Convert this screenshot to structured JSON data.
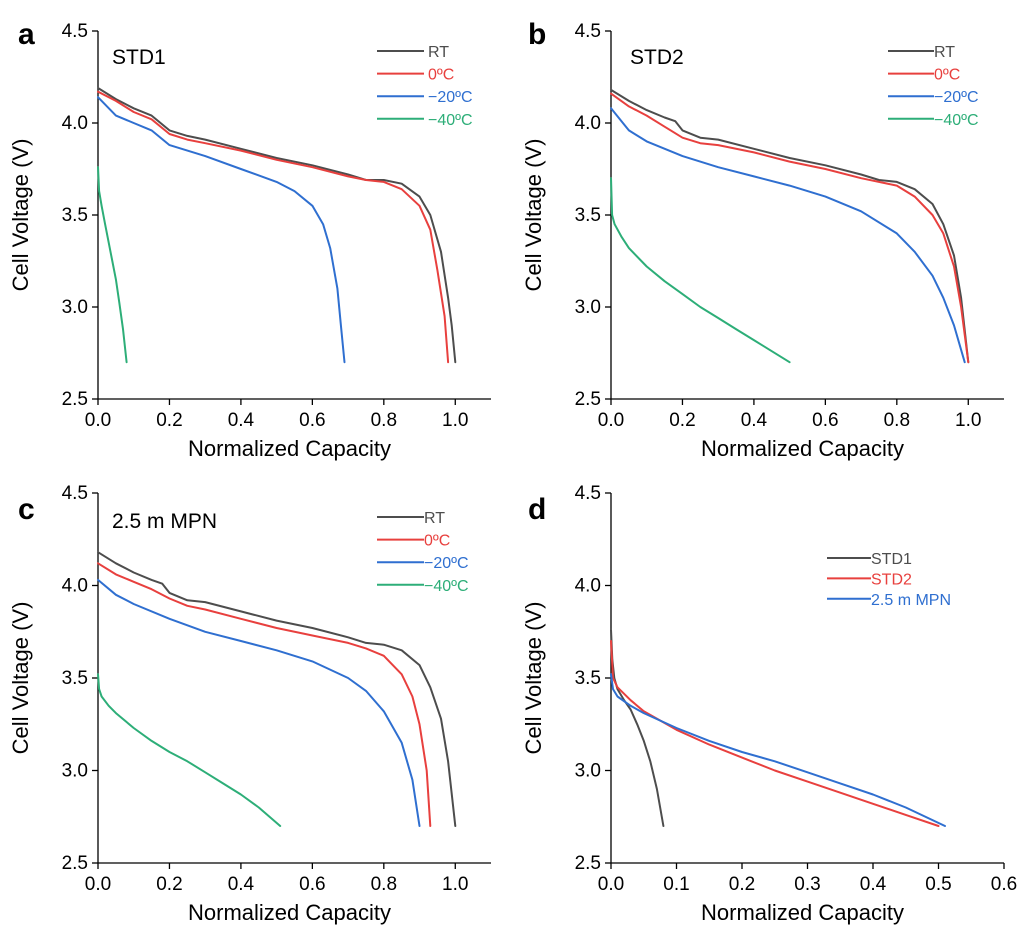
{
  "chart_data": [
    {
      "type": "line",
      "panel_letter": "a",
      "title": "STD1",
      "xlabel": "Normalized Capacity",
      "ylabel": "Cell Voltage (V)",
      "xlim": [
        0,
        1.1
      ],
      "ylim": [
        2.5,
        4.5
      ],
      "xticks": [
        "0.0",
        "0.2",
        "0.4",
        "0.6",
        "0.8",
        "1.0"
      ],
      "yticks": [
        "2.5",
        "3.0",
        "3.5",
        "4.0",
        "4.5"
      ],
      "legend_position": "top-right",
      "series": [
        {
          "name": "RT",
          "color": "#4d4d4d",
          "points": [
            [
              0,
              4.19
            ],
            [
              0.05,
              4.13
            ],
            [
              0.1,
              4.08
            ],
            [
              0.15,
              4.04
            ],
            [
              0.2,
              3.96
            ],
            [
              0.25,
              3.93
            ],
            [
              0.3,
              3.91
            ],
            [
              0.4,
              3.86
            ],
            [
              0.5,
              3.81
            ],
            [
              0.6,
              3.77
            ],
            [
              0.7,
              3.72
            ],
            [
              0.75,
              3.69
            ],
            [
              0.8,
              3.69
            ],
            [
              0.85,
              3.67
            ],
            [
              0.9,
              3.6
            ],
            [
              0.93,
              3.5
            ],
            [
              0.96,
              3.3
            ],
            [
              0.98,
              3.05
            ],
            [
              0.99,
              2.9
            ],
            [
              1.0,
              2.7
            ]
          ]
        },
        {
          "name": "0ºC",
          "color": "#e8403e",
          "points": [
            [
              0,
              4.17
            ],
            [
              0.05,
              4.12
            ],
            [
              0.1,
              4.06
            ],
            [
              0.15,
              4.02
            ],
            [
              0.2,
              3.94
            ],
            [
              0.25,
              3.91
            ],
            [
              0.3,
              3.89
            ],
            [
              0.4,
              3.85
            ],
            [
              0.5,
              3.8
            ],
            [
              0.6,
              3.76
            ],
            [
              0.7,
              3.71
            ],
            [
              0.75,
              3.69
            ],
            [
              0.8,
              3.68
            ],
            [
              0.85,
              3.64
            ],
            [
              0.9,
              3.55
            ],
            [
              0.93,
              3.42
            ],
            [
              0.95,
              3.2
            ],
            [
              0.97,
              2.95
            ],
            [
              0.98,
              2.7
            ]
          ]
        },
        {
          "name": "−20ºC",
          "color": "#2f6fd0",
          "points": [
            [
              0,
              4.14
            ],
            [
              0.05,
              4.04
            ],
            [
              0.1,
              4.0
            ],
            [
              0.15,
              3.96
            ],
            [
              0.2,
              3.88
            ],
            [
              0.3,
              3.82
            ],
            [
              0.4,
              3.75
            ],
            [
              0.5,
              3.68
            ],
            [
              0.55,
              3.63
            ],
            [
              0.6,
              3.55
            ],
            [
              0.63,
              3.45
            ],
            [
              0.65,
              3.32
            ],
            [
              0.67,
              3.1
            ],
            [
              0.68,
              2.9
            ],
            [
              0.69,
              2.7
            ]
          ]
        },
        {
          "name": "−40ºC",
          "color": "#2dae78",
          "points": [
            [
              0,
              3.76
            ],
            [
              0.003,
              3.63
            ],
            [
              0.01,
              3.55
            ],
            [
              0.02,
              3.45
            ],
            [
              0.03,
              3.35
            ],
            [
              0.04,
              3.25
            ],
            [
              0.05,
              3.15
            ],
            [
              0.06,
              3.02
            ],
            [
              0.07,
              2.88
            ],
            [
              0.08,
              2.7
            ]
          ]
        }
      ]
    },
    {
      "type": "line",
      "panel_letter": "b",
      "title": "STD2",
      "xlabel": "Normalized Capacity",
      "ylabel": "Cell Voltage (V)",
      "xlim": [
        0,
        1.1
      ],
      "ylim": [
        2.5,
        4.5
      ],
      "xticks": [
        "0.0",
        "0.2",
        "0.4",
        "0.6",
        "0.8",
        "1.0"
      ],
      "yticks": [
        "2.5",
        "3.0",
        "3.5",
        "4.0",
        "4.5"
      ],
      "legend_position": "top-right",
      "series": [
        {
          "name": "RT",
          "color": "#4d4d4d",
          "points": [
            [
              0,
              4.18
            ],
            [
              0.05,
              4.12
            ],
            [
              0.1,
              4.07
            ],
            [
              0.15,
              4.03
            ],
            [
              0.18,
              4.01
            ],
            [
              0.2,
              3.96
            ],
            [
              0.25,
              3.92
            ],
            [
              0.3,
              3.91
            ],
            [
              0.4,
              3.86
            ],
            [
              0.5,
              3.81
            ],
            [
              0.6,
              3.77
            ],
            [
              0.7,
              3.72
            ],
            [
              0.75,
              3.69
            ],
            [
              0.8,
              3.68
            ],
            [
              0.85,
              3.64
            ],
            [
              0.9,
              3.56
            ],
            [
              0.93,
              3.45
            ],
            [
              0.96,
              3.28
            ],
            [
              0.98,
              3.05
            ],
            [
              1.0,
              2.7
            ]
          ]
        },
        {
          "name": "0ºC",
          "color": "#e8403e",
          "points": [
            [
              0,
              4.16
            ],
            [
              0.05,
              4.09
            ],
            [
              0.1,
              4.04
            ],
            [
              0.15,
              3.98
            ],
            [
              0.2,
              3.92
            ],
            [
              0.25,
              3.89
            ],
            [
              0.3,
              3.88
            ],
            [
              0.4,
              3.84
            ],
            [
              0.5,
              3.79
            ],
            [
              0.6,
              3.75
            ],
            [
              0.7,
              3.7
            ],
            [
              0.8,
              3.66
            ],
            [
              0.85,
              3.6
            ],
            [
              0.9,
              3.5
            ],
            [
              0.93,
              3.4
            ],
            [
              0.96,
              3.22
            ],
            [
              0.98,
              3.0
            ],
            [
              1.0,
              2.7
            ]
          ]
        },
        {
          "name": "−20ºC",
          "color": "#2f6fd0",
          "points": [
            [
              0,
              4.08
            ],
            [
              0.05,
              3.96
            ],
            [
              0.1,
              3.9
            ],
            [
              0.2,
              3.82
            ],
            [
              0.3,
              3.76
            ],
            [
              0.4,
              3.71
            ],
            [
              0.5,
              3.66
            ],
            [
              0.6,
              3.6
            ],
            [
              0.7,
              3.52
            ],
            [
              0.8,
              3.4
            ],
            [
              0.85,
              3.3
            ],
            [
              0.9,
              3.17
            ],
            [
              0.93,
              3.05
            ],
            [
              0.96,
              2.9
            ],
            [
              0.99,
              2.7
            ]
          ]
        },
        {
          "name": "−40ºC",
          "color": "#2dae78",
          "points": [
            [
              0,
              3.7
            ],
            [
              0.003,
              3.5
            ],
            [
              0.01,
              3.45
            ],
            [
              0.03,
              3.38
            ],
            [
              0.05,
              3.32
            ],
            [
              0.1,
              3.22
            ],
            [
              0.15,
              3.14
            ],
            [
              0.2,
              3.07
            ],
            [
              0.25,
              3.0
            ],
            [
              0.3,
              2.94
            ],
            [
              0.35,
              2.88
            ],
            [
              0.4,
              2.82
            ],
            [
              0.45,
              2.76
            ],
            [
              0.5,
              2.7
            ]
          ]
        }
      ]
    },
    {
      "type": "line",
      "panel_letter": "c",
      "title": "2.5 m MPN",
      "xlabel": "Normalized Capacity",
      "ylabel": "Cell Voltage (V)",
      "xlim": [
        0,
        1.1
      ],
      "ylim": [
        2.5,
        4.5
      ],
      "xticks": [
        "0.0",
        "0.2",
        "0.4",
        "0.6",
        "0.8",
        "1.0"
      ],
      "yticks": [
        "2.5",
        "3.0",
        "3.5",
        "4.0",
        "4.5"
      ],
      "legend_position": "top-right",
      "series": [
        {
          "name": "RT",
          "color": "#4d4d4d",
          "points": [
            [
              0,
              4.18
            ],
            [
              0.05,
              4.12
            ],
            [
              0.1,
              4.07
            ],
            [
              0.15,
              4.03
            ],
            [
              0.18,
              4.01
            ],
            [
              0.2,
              3.96
            ],
            [
              0.25,
              3.92
            ],
            [
              0.3,
              3.91
            ],
            [
              0.4,
              3.86
            ],
            [
              0.5,
              3.81
            ],
            [
              0.6,
              3.77
            ],
            [
              0.7,
              3.72
            ],
            [
              0.75,
              3.69
            ],
            [
              0.8,
              3.68
            ],
            [
              0.85,
              3.65
            ],
            [
              0.9,
              3.57
            ],
            [
              0.93,
              3.45
            ],
            [
              0.96,
              3.28
            ],
            [
              0.98,
              3.05
            ],
            [
              1.0,
              2.7
            ]
          ]
        },
        {
          "name": "0ºC",
          "color": "#e8403e",
          "points": [
            [
              0,
              4.12
            ],
            [
              0.05,
              4.06
            ],
            [
              0.1,
              4.02
            ],
            [
              0.15,
              3.98
            ],
            [
              0.2,
              3.93
            ],
            [
              0.25,
              3.89
            ],
            [
              0.3,
              3.87
            ],
            [
              0.4,
              3.82
            ],
            [
              0.5,
              3.77
            ],
            [
              0.6,
              3.73
            ],
            [
              0.7,
              3.69
            ],
            [
              0.75,
              3.66
            ],
            [
              0.8,
              3.62
            ],
            [
              0.85,
              3.52
            ],
            [
              0.88,
              3.4
            ],
            [
              0.9,
              3.25
            ],
            [
              0.92,
              3.0
            ],
            [
              0.93,
              2.7
            ]
          ]
        },
        {
          "name": "−20ºC",
          "color": "#2f6fd0",
          "points": [
            [
              0,
              4.03
            ],
            [
              0.05,
              3.95
            ],
            [
              0.1,
              3.9
            ],
            [
              0.2,
              3.82
            ],
            [
              0.3,
              3.75
            ],
            [
              0.4,
              3.7
            ],
            [
              0.5,
              3.65
            ],
            [
              0.6,
              3.59
            ],
            [
              0.7,
              3.5
            ],
            [
              0.75,
              3.43
            ],
            [
              0.8,
              3.32
            ],
            [
              0.85,
              3.15
            ],
            [
              0.88,
              2.95
            ],
            [
              0.9,
              2.7
            ]
          ]
        },
        {
          "name": "−40ºC",
          "color": "#2dae78",
          "points": [
            [
              0,
              3.52
            ],
            [
              0.003,
              3.44
            ],
            [
              0.01,
              3.4
            ],
            [
              0.03,
              3.35
            ],
            [
              0.05,
              3.31
            ],
            [
              0.1,
              3.23
            ],
            [
              0.15,
              3.16
            ],
            [
              0.2,
              3.1
            ],
            [
              0.25,
              3.05
            ],
            [
              0.3,
              2.99
            ],
            [
              0.35,
              2.93
            ],
            [
              0.4,
              2.87
            ],
            [
              0.45,
              2.8
            ],
            [
              0.51,
              2.7
            ]
          ]
        }
      ]
    },
    {
      "type": "line",
      "panel_letter": "d",
      "xlabel": "Normalized Capacity",
      "ylabel": "Cell Voltage (V)",
      "xlim": [
        0,
        0.6
      ],
      "ylim": [
        2.5,
        4.5
      ],
      "xticks": [
        "0.0",
        "0.1",
        "0.2",
        "0.3",
        "0.4",
        "0.5",
        "0.6"
      ],
      "yticks": [
        "2.5",
        "3.0",
        "3.5",
        "4.0",
        "4.5"
      ],
      "legend_position": "top-right",
      "series": [
        {
          "name": "STD1",
          "color": "#4d4d4d",
          "points": [
            [
              0,
              3.76
            ],
            [
              0.002,
              3.6
            ],
            [
              0.005,
              3.5
            ],
            [
              0.01,
              3.44
            ],
            [
              0.02,
              3.38
            ],
            [
              0.03,
              3.33
            ],
            [
              0.04,
              3.25
            ],
            [
              0.05,
              3.16
            ],
            [
              0.06,
              3.05
            ],
            [
              0.07,
              2.9
            ],
            [
              0.08,
              2.7
            ]
          ]
        },
        {
          "name": "STD2",
          "color": "#e8403e",
          "points": [
            [
              0,
              3.7
            ],
            [
              0.003,
              3.5
            ],
            [
              0.01,
              3.45
            ],
            [
              0.03,
              3.38
            ],
            [
              0.05,
              3.32
            ],
            [
              0.1,
              3.22
            ],
            [
              0.15,
              3.14
            ],
            [
              0.2,
              3.07
            ],
            [
              0.25,
              3.0
            ],
            [
              0.3,
              2.94
            ],
            [
              0.35,
              2.88
            ],
            [
              0.4,
              2.82
            ],
            [
              0.45,
              2.76
            ],
            [
              0.5,
              2.7
            ]
          ]
        },
        {
          "name": "2.5 m MPN",
          "color": "#2f6fd0",
          "points": [
            [
              0,
              3.52
            ],
            [
              0.003,
              3.44
            ],
            [
              0.01,
              3.4
            ],
            [
              0.03,
              3.35
            ],
            [
              0.05,
              3.31
            ],
            [
              0.1,
              3.23
            ],
            [
              0.15,
              3.16
            ],
            [
              0.2,
              3.1
            ],
            [
              0.25,
              3.05
            ],
            [
              0.3,
              2.99
            ],
            [
              0.35,
              2.93
            ],
            [
              0.4,
              2.87
            ],
            [
              0.45,
              2.8
            ],
            [
              0.51,
              2.7
            ]
          ]
        }
      ]
    }
  ]
}
